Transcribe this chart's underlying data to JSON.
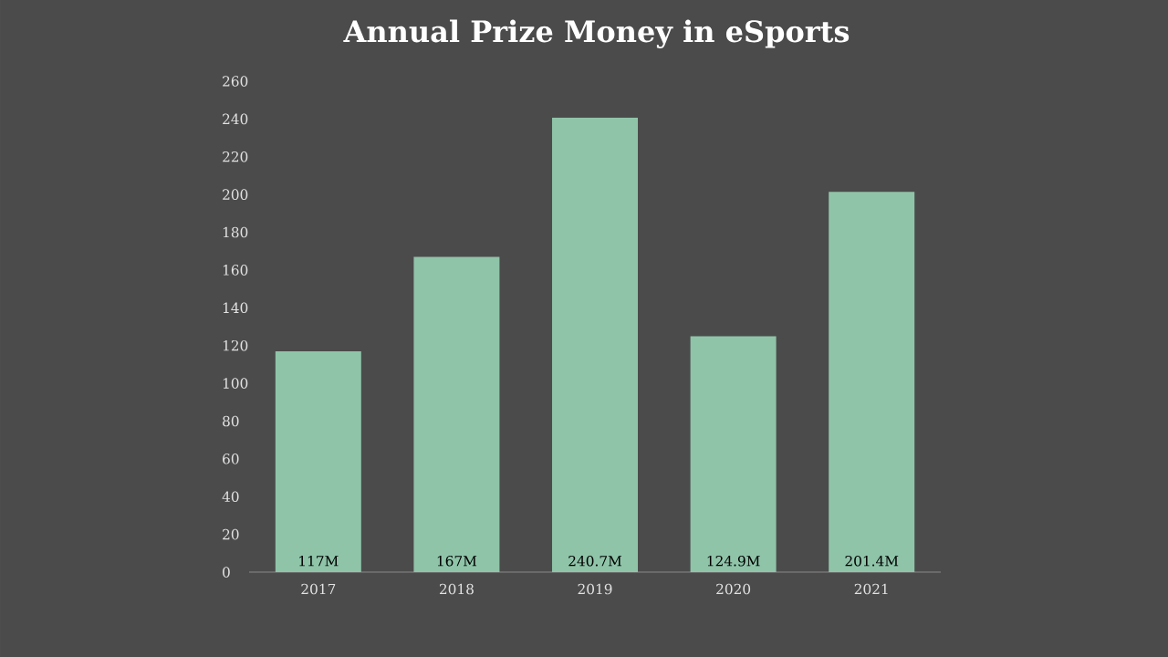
{
  "chart_data": {
    "type": "bar",
    "title": "Annual Prize Money in eSports",
    "categories": [
      "2017",
      "2018",
      "2019",
      "2020",
      "2021"
    ],
    "values": [
      117,
      167,
      240.7,
      124.9,
      201.4
    ],
    "value_labels": [
      "117M",
      "167M",
      "240.7M",
      "124.9M",
      "201.4M"
    ],
    "color": "#8fc4a9",
    "ylim": [
      0,
      260
    ],
    "yticks": [
      0,
      20,
      40,
      60,
      80,
      100,
      120,
      140,
      160,
      180,
      200,
      220,
      240,
      260
    ]
  }
}
